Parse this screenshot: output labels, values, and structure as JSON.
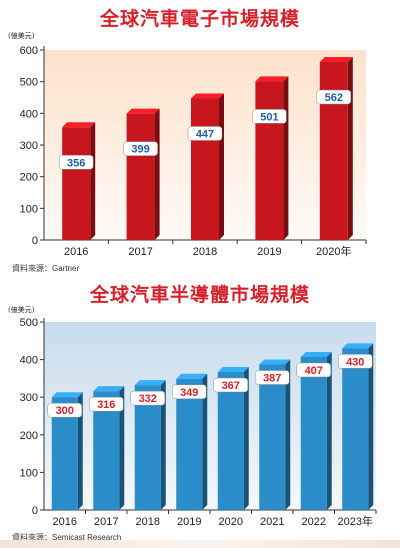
{
  "chart_data": [
    {
      "type": "bar",
      "title": "全球汽車電子市場規模",
      "unit": "(億美元)",
      "categories": [
        "2016",
        "2017",
        "2018",
        "2019",
        "2020年"
      ],
      "values": [
        356,
        399,
        447,
        501,
        562
      ],
      "ylim": [
        0,
        600
      ],
      "yticks": [
        0,
        100,
        200,
        300,
        400,
        500,
        600
      ],
      "grid": false,
      "source": "資料來源：Gartner",
      "bar_color": "#c8161e",
      "label_color": "#1f5fa8"
    },
    {
      "type": "bar",
      "title": "全球汽車半導體市場規模",
      "unit": "(億美元)",
      "categories": [
        "2016",
        "2017",
        "2018",
        "2019",
        "2020",
        "2021",
        "2022",
        "2023年"
      ],
      "values": [
        300,
        316,
        332,
        349,
        367,
        387,
        407,
        430
      ],
      "ylim": [
        0,
        500
      ],
      "yticks": [
        0,
        100,
        200,
        300,
        400,
        500
      ],
      "grid": false,
      "source": "資料來源：Semicast Research",
      "bar_color": "#2a8cc8",
      "label_color": "#d8202a"
    }
  ]
}
